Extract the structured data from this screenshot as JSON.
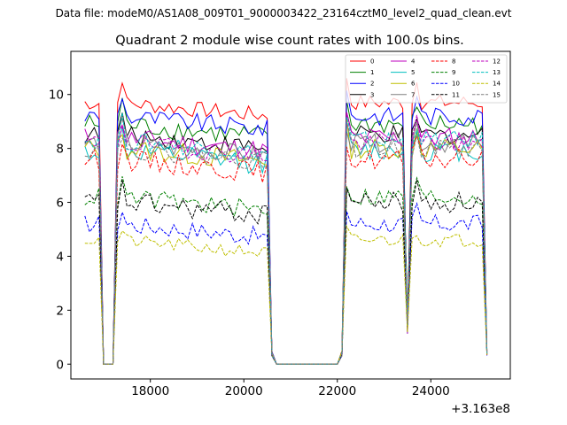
{
  "figure": {
    "suptitle": "Data file: modeM0/AS1A08_009T01_9000003422_23164cztM0_level2_quad_clean.evt"
  },
  "chart_data": {
    "type": "line",
    "title": "Quadrant 2 module wise count rates with 100.0s bins.",
    "xlabel": "",
    "ylabel": "",
    "x_offset_label": "+3.163e8",
    "xlim": [
      16300,
      25700
    ],
    "ylim": [
      -0.55,
      11.6
    ],
    "xticks": [
      18000,
      20000,
      22000,
      24000
    ],
    "xtick_labels": [
      "18000",
      "20000",
      "22000",
      "24000"
    ],
    "yticks": [
      0,
      2,
      4,
      6,
      8,
      10
    ],
    "ytick_labels": [
      "0",
      "2",
      "4",
      "6",
      "8",
      "10"
    ],
    "legend_position": "top-right",
    "legend_columns": 4,
    "series": [
      {
        "name": "0",
        "color": "#ff0000",
        "dash": "solid",
        "base": 9.7,
        "noise": 0.3,
        "amp": 0.55
      },
      {
        "name": "1",
        "color": "#008000",
        "dash": "solid",
        "base": 8.9,
        "noise": 0.4,
        "amp": 0.5
      },
      {
        "name": "2",
        "color": "#0000ff",
        "dash": "solid",
        "base": 9.2,
        "noise": 0.35,
        "amp": 0.5
      },
      {
        "name": "3",
        "color": "#000000",
        "dash": "solid",
        "base": 8.5,
        "noise": 0.35,
        "amp": 0.4
      },
      {
        "name": "4",
        "color": "#bf00bf",
        "dash": "solid",
        "base": 8.4,
        "noise": 0.4,
        "amp": 0.4
      },
      {
        "name": "5",
        "color": "#00bfbf",
        "dash": "solid",
        "base": 7.9,
        "noise": 0.4,
        "amp": 0.4
      },
      {
        "name": "6",
        "color": "#bfbf00",
        "dash": "solid",
        "base": 8.0,
        "noise": 0.4,
        "amp": 0.4
      },
      {
        "name": "7",
        "color": "#808080",
        "dash": "solid",
        "base": 8.2,
        "noise": 0.35,
        "amp": 0.4
      },
      {
        "name": "8",
        "color": "#ff0000",
        "dash": "dashed",
        "base": 7.6,
        "noise": 0.4,
        "amp": 0.4
      },
      {
        "name": "9",
        "color": "#008000",
        "dash": "dashed",
        "base": 6.2,
        "noise": 0.35,
        "amp": 0.3
      },
      {
        "name": "10",
        "color": "#0000ff",
        "dash": "dashed",
        "base": 5.2,
        "noise": 0.35,
        "amp": 0.3
      },
      {
        "name": "11",
        "color": "#000000",
        "dash": "dashed",
        "base": 6.0,
        "noise": 0.4,
        "amp": 0.3
      },
      {
        "name": "12",
        "color": "#bf00bf",
        "dash": "dashed",
        "base": 8.2,
        "noise": 0.35,
        "amp": 0.4
      },
      {
        "name": "13",
        "color": "#00bfbf",
        "dash": "dashed",
        "base": 8.3,
        "noise": 0.35,
        "amp": 0.4
      },
      {
        "name": "14",
        "color": "#bfbf00",
        "dash": "dashed",
        "base": 4.6,
        "noise": 0.25,
        "amp": 0.2
      },
      {
        "name": "15",
        "color": "#808080",
        "dash": "dashed",
        "base": 8.0,
        "noise": 0.35,
        "amp": 0.4
      }
    ],
    "time_segments": [
      {
        "start": 16600,
        "end": 16900,
        "state": "on",
        "step": 100
      },
      {
        "start": 17000,
        "end": 17200,
        "state": "off",
        "step": 100
      },
      {
        "start": 17300,
        "end": 20500,
        "state": "on",
        "step": 100
      },
      {
        "start": 20600,
        "end": 20600,
        "state": "drop",
        "step": 100
      },
      {
        "start": 20700,
        "end": 22000,
        "state": "off",
        "step": 100
      },
      {
        "start": 22100,
        "end": 22100,
        "state": "drop",
        "step": 100
      },
      {
        "start": 22200,
        "end": 23400,
        "state": "on",
        "step": 100
      },
      {
        "start": 23500,
        "end": 23500,
        "state": "dip",
        "step": 100
      },
      {
        "start": 23600,
        "end": 25100,
        "state": "on",
        "step": 100
      },
      {
        "start": 25200,
        "end": 25200,
        "state": "drop",
        "step": 100
      }
    ]
  }
}
